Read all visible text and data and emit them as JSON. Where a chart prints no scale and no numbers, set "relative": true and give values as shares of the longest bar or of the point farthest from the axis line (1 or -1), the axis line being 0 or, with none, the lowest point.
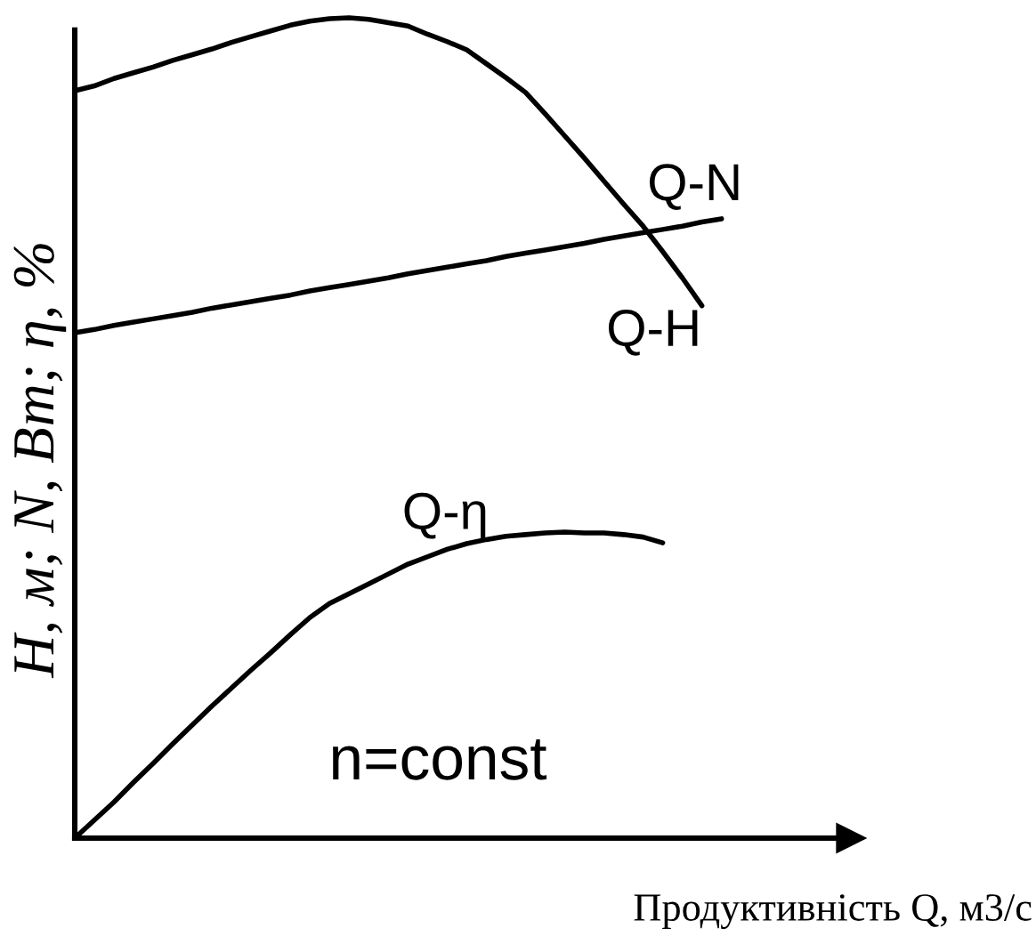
{
  "chart_data": {
    "type": "line",
    "relative": true,
    "ylabel": "H, м; N, Вт; η, %",
    "xlabel": "Продуктивність Q, м3/с",
    "annotations": [
      "n=const"
    ],
    "categories": [
      null,
      null,
      null,
      null,
      null,
      null,
      null,
      null,
      null,
      null,
      null,
      null,
      null,
      null,
      null,
      null,
      null,
      null,
      null,
      null,
      null,
      null,
      null,
      null,
      null,
      null,
      null,
      null,
      null,
      null,
      null,
      null,
      null,
      null
    ],
    "series": [
      {
        "name": "Q-H",
        "color": "#000000",
        "values": [
          0.911,
          0.917,
          0.926,
          0.933,
          0.94,
          0.948,
          0.955,
          0.962,
          0.97,
          0.977,
          0.984,
          0.991,
          0.996,
          0.999,
          1,
          0.998,
          0.994,
          0.99,
          0.98,
          0.971,
          0.961,
          0.944,
          0.927,
          0.909,
          0.883,
          0.856,
          0.829,
          0.801,
          0.773,
          0.746,
          0.715,
          0.683,
          0.649,
          null
        ]
      },
      {
        "name": "Q-N",
        "color": "#000000",
        "values": [
          0.616,
          0.62,
          0.625,
          0.629,
          0.633,
          0.637,
          0.641,
          0.646,
          0.65,
          0.654,
          0.658,
          0.662,
          0.667,
          0.671,
          0.675,
          0.679,
          0.683,
          0.688,
          0.692,
          0.696,
          0.7,
          0.704,
          0.709,
          0.713,
          0.717,
          0.721,
          0.725,
          0.73,
          0.734,
          0.738,
          0.742,
          0.746,
          0.751,
          0.755
        ]
      },
      {
        "name": "Q-η",
        "color": "#000000",
        "values": [
          0,
          0.022,
          0.044,
          0.068,
          0.091,
          0.115,
          0.138,
          0.161,
          0.183,
          0.205,
          0.226,
          0.248,
          0.269,
          0.286,
          0.298,
          0.31,
          0.322,
          0.334,
          0.343,
          0.352,
          0.359,
          0.364,
          0.368,
          0.37,
          0.372,
          0.373,
          0.372,
          0.372,
          0.37,
          0.367,
          0.36,
          null,
          null,
          null
        ]
      }
    ]
  }
}
